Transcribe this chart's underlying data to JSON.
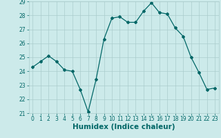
{
  "x": [
    0,
    1,
    2,
    3,
    4,
    5,
    6,
    7,
    8,
    9,
    10,
    11,
    12,
    13,
    14,
    15,
    16,
    17,
    18,
    19,
    20,
    21,
    22,
    23
  ],
  "y": [
    24.3,
    24.7,
    25.1,
    24.7,
    24.1,
    24.0,
    22.7,
    21.1,
    23.4,
    26.3,
    27.8,
    27.9,
    27.5,
    27.5,
    28.3,
    28.9,
    28.2,
    28.1,
    27.1,
    26.5,
    25.0,
    23.9,
    22.7,
    22.8
  ],
  "xlabel": "Humidex (Indice chaleur)",
  "ylim": [
    21,
    29
  ],
  "xlim": [
    -0.5,
    23.5
  ],
  "yticks": [
    21,
    22,
    23,
    24,
    25,
    26,
    27,
    28,
    29
  ],
  "xticks": [
    0,
    1,
    2,
    3,
    4,
    5,
    6,
    7,
    8,
    9,
    10,
    11,
    12,
    13,
    14,
    15,
    16,
    17,
    18,
    19,
    20,
    21,
    22,
    23
  ],
  "line_color": "#006666",
  "marker": "D",
  "marker_size": 2.0,
  "bg_color": "#cceaea",
  "grid_color": "#aacccc",
  "tick_label_fontsize": 5.5,
  "xlabel_fontsize": 7.5,
  "line_width": 0.9
}
